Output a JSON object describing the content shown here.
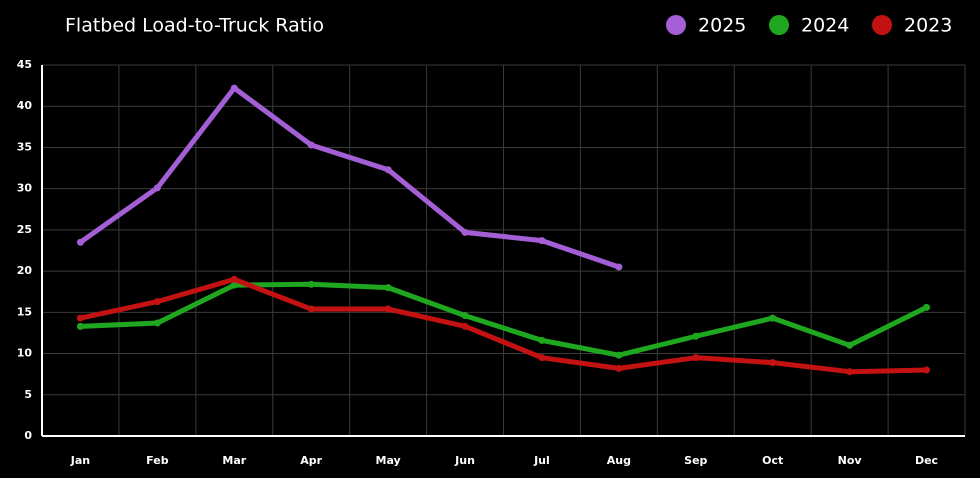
{
  "chart_data": {
    "type": "line",
    "title": "Flatbed Load-to-Truck Ratio",
    "categories": [
      "Jan",
      "Feb",
      "Mar",
      "Apr",
      "May",
      "Jun",
      "Jul",
      "Aug",
      "Sep",
      "Oct",
      "Nov",
      "Dec"
    ],
    "series": [
      {
        "name": "2025",
        "color": "#a45fd6",
        "values": [
          23.5,
          30.1,
          42.2,
          35.3,
          32.3,
          24.7,
          23.7,
          20.5,
          null,
          null,
          null,
          null
        ]
      },
      {
        "name": "2024",
        "color": "#1fa81f",
        "values": [
          13.3,
          13.7,
          18.3,
          18.4,
          18.0,
          14.6,
          11.6,
          9.8,
          12.1,
          14.3,
          11.0,
          15.6
        ]
      },
      {
        "name": "2023",
        "color": "#c41212",
        "values": [
          14.3,
          16.3,
          19.0,
          15.4,
          15.4,
          13.3,
          9.5,
          8.2,
          9.5,
          8.9,
          7.8,
          8.0
        ]
      }
    ],
    "ylim": [
      0,
      45
    ],
    "yticks": [
      0,
      5,
      10,
      15,
      20,
      25,
      30,
      35,
      40,
      45
    ],
    "grid": true
  }
}
